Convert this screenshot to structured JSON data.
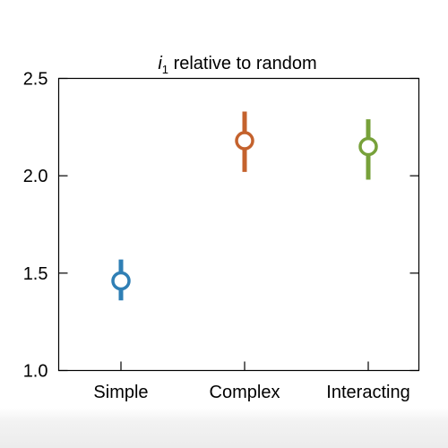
{
  "chart_data": {
    "type": "scatter",
    "title_italic": "i",
    "title_subscript": "1",
    "title_rest": " relative to random",
    "xlabel": "",
    "ylabel": "",
    "categories": [
      "Simple",
      "Complex",
      "Interacting"
    ],
    "points": [
      {
        "label": "Simple",
        "value": 1.46,
        "low": 1.36,
        "high": 1.57,
        "color": "#2f7fb5"
      },
      {
        "label": "Complex",
        "value": 2.18,
        "low": 2.02,
        "high": 2.33,
        "color": "#c4622d"
      },
      {
        "label": "Interacting",
        "value": 2.15,
        "low": 1.98,
        "high": 2.29,
        "color": "#77a13a"
      }
    ],
    "ylim": [
      1.0,
      2.5
    ],
    "yticks": [
      "1.0",
      "1.5",
      "2.0",
      "2.5"
    ],
    "ytick_values": [
      1.0,
      1.5,
      2.0,
      2.5
    ],
    "grid": false,
    "legend": "none"
  }
}
